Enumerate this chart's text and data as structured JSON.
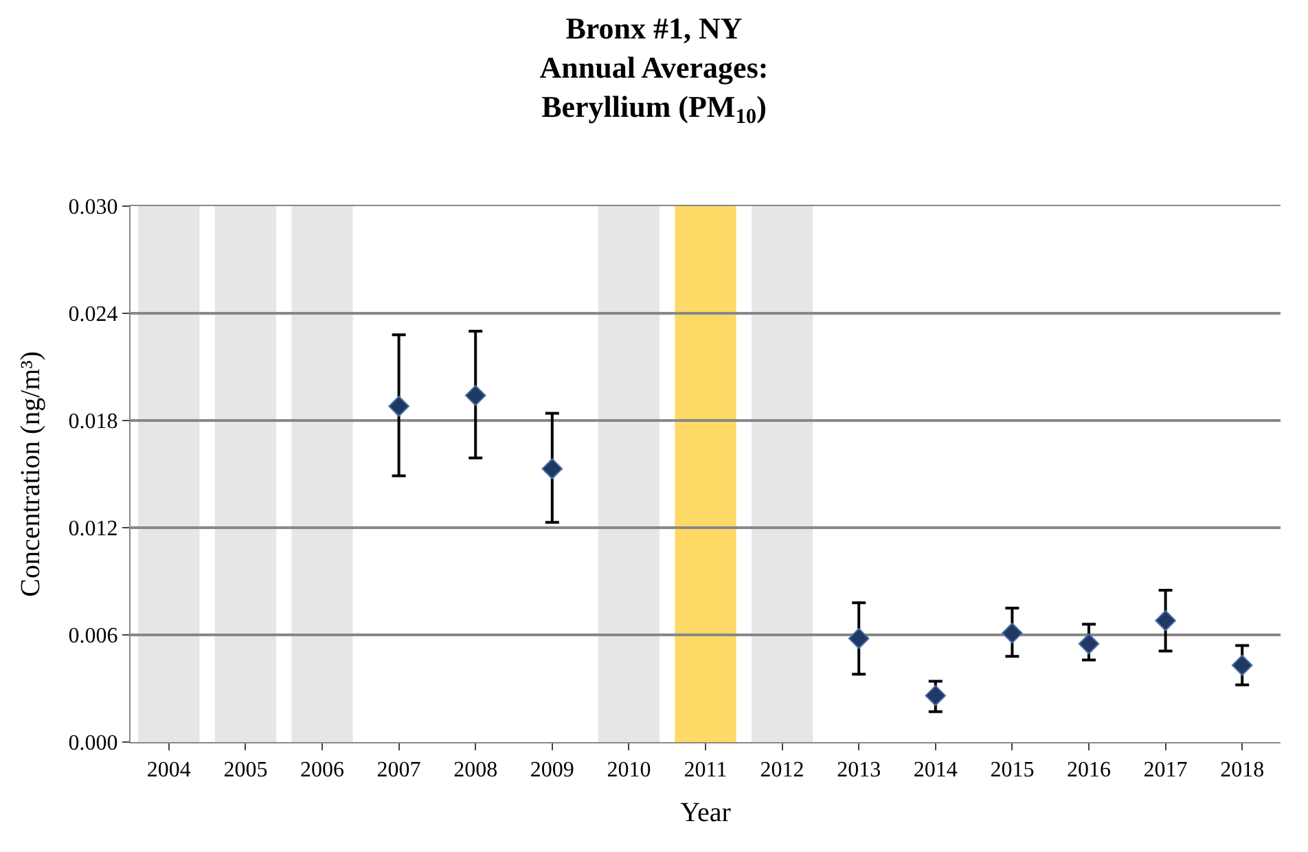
{
  "chart_data": {
    "type": "scatter",
    "title": "Bronx #1, NY\nAnnual Averages:\nBeryllium (PM$_{10}$)",
    "xlabel": "Year",
    "ylabel": "Concentration (ng/m³)",
    "categories": [
      "2004",
      "2005",
      "2006",
      "2007",
      "2008",
      "2009",
      "2010",
      "2011",
      "2012",
      "2013",
      "2014",
      "2015",
      "2016",
      "2017",
      "2018"
    ],
    "series": [
      {
        "color": "#1f3864",
        "values": [
          null,
          null,
          null,
          0.0188,
          0.0194,
          0.0153,
          null,
          null,
          null,
          0.0058,
          0.0026,
          0.0061,
          0.0055,
          0.0068,
          0.0043
        ],
        "errors": [
          null,
          null,
          null,
          [
            0.0149,
            0.0228
          ],
          [
            0.0159,
            0.023
          ],
          [
            0.0123,
            0.0184
          ],
          null,
          null,
          null,
          [
            0.0038,
            0.0078
          ],
          [
            0.0017,
            0.0034
          ],
          [
            0.0048,
            0.0075
          ],
          [
            0.0046,
            0.0066
          ],
          [
            0.0051,
            0.0085
          ],
          [
            0.0032,
            0.0054
          ]
        ]
      }
    ],
    "ylim": [
      0,
      0.03
    ],
    "yticks": [
      {
        "value": 0,
        "label": "0.000"
      },
      {
        "value": 0.006,
        "label": "0.006"
      },
      {
        "value": 0.012,
        "label": "0.012"
      },
      {
        "value": 0.018,
        "label": "0.018"
      },
      {
        "value": 0.024,
        "label": "0.024"
      },
      {
        "value": 0.03,
        "label": "0.030"
      }
    ],
    "bands": [
      {
        "axis": "x",
        "from": "2004",
        "to": "2004",
        "color": "#e6e6e6"
      },
      {
        "axis": "x",
        "from": "2005",
        "to": "2005",
        "color": "#e6e6e6"
      },
      {
        "axis": "x",
        "from": "2006",
        "to": "2006",
        "color": "#e6e6e6"
      },
      {
        "axis": "x",
        "from": "2010",
        "to": "2010",
        "color": "#e6e6e6"
      },
      {
        "axis": "x",
        "from": "2011",
        "to": "2011",
        "color": "#ffd966"
      },
      {
        "axis": "x",
        "from": "2012",
        "to": "2012",
        "color": "#e6e6e6"
      }
    ],
    "grid": "y",
    "marker": "diamond"
  }
}
